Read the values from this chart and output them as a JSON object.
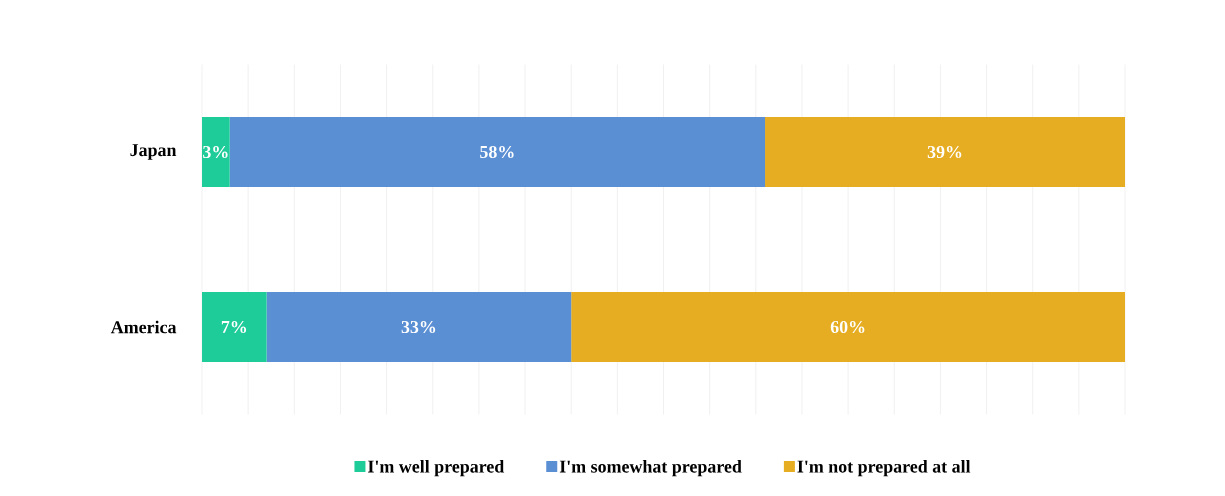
{
  "chart_data": {
    "type": "bar",
    "orientation": "horizontal",
    "stacked": true,
    "categories": [
      "Japan",
      "America"
    ],
    "series": [
      {
        "name": "I'm well prepared",
        "color": "#1ecc9a",
        "values": [
          3,
          7
        ],
        "value_labels": [
          "3%",
          "7%"
        ]
      },
      {
        "name": "I'm somewhat prepared",
        "color": "#5b8fd4",
        "values": [
          58,
          33
        ],
        "value_labels": [
          "58%",
          "33%"
        ]
      },
      {
        "name": "I'm not prepared at all",
        "color": "#e6ad22",
        "values": [
          39,
          60
        ],
        "value_labels": [
          "39%",
          "60%"
        ]
      }
    ],
    "xlim": [
      0,
      100
    ],
    "grid": "x",
    "legend": "bottom",
    "tick_labels": "y"
  }
}
